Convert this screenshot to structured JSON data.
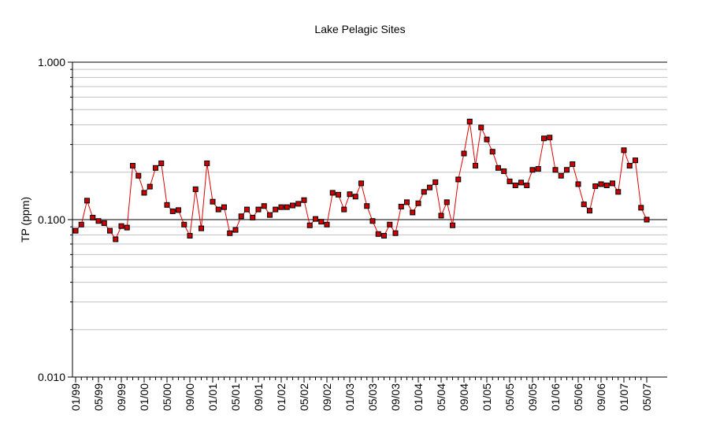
{
  "chart_data": {
    "type": "line",
    "title": "Lake Pelagic Sites",
    "xlabel": "",
    "ylabel": "TP (ppm)",
    "y_scale": "log",
    "ylim": [
      0.01,
      1.0
    ],
    "y_ticks": [
      0.01,
      0.1,
      1.0
    ],
    "y_tick_labels": [
      "0.010",
      "0.100",
      "1.000"
    ],
    "x_tick_labels": [
      "01/99",
      "05/99",
      "09/99",
      "01/00",
      "05/00",
      "09/00",
      "01/01",
      "05/01",
      "09/01",
      "01/02",
      "05/02",
      "09/02",
      "01/03",
      "05/03",
      "09/03",
      "01/04",
      "05/04",
      "09/04",
      "01/05",
      "05/05",
      "09/05",
      "01/06",
      "05/06",
      "09/06",
      "01/07",
      "05/07"
    ],
    "grid": "horizontal",
    "reference_line": 0.1,
    "colors": {
      "line": "#e00000",
      "marker_fill": "#cc0000",
      "marker_edge": "#000000",
      "grid": "#c0c0c0",
      "axis": "#000000"
    },
    "series": [
      {
        "values": [
          0.085,
          0.093,
          0.132,
          0.103,
          0.098,
          0.095,
          0.085,
          0.075,
          0.091,
          0.089,
          0.22,
          0.19,
          0.148,
          0.162,
          0.213,
          0.228,
          0.124,
          0.113,
          0.115,
          0.093,
          0.079,
          0.156,
          0.088,
          0.228,
          0.13,
          0.116,
          0.12,
          0.082,
          0.086,
          0.105,
          0.116,
          0.103,
          0.116,
          0.122,
          0.107,
          0.116,
          0.12,
          0.12,
          0.123,
          0.126,
          0.133,
          0.092,
          0.101,
          0.097,
          0.093,
          0.148,
          0.144,
          0.116,
          0.145,
          0.14,
          0.17,
          0.122,
          0.098,
          0.081,
          0.079,
          0.093,
          0.082,
          0.121,
          0.129,
          0.111,
          0.127,
          0.15,
          0.16,
          0.173,
          0.106,
          0.129,
          0.092,
          0.18,
          0.263,
          0.42,
          0.22,
          0.385,
          0.323,
          0.27,
          0.213,
          0.203,
          0.175,
          0.165,
          0.172,
          0.165,
          0.207,
          0.21,
          0.328,
          0.332,
          0.207,
          0.19,
          0.207,
          0.225,
          0.168,
          0.125,
          0.114,
          0.163,
          0.168,
          0.165,
          0.17,
          0.15,
          0.276,
          0.22,
          0.238,
          0.119,
          0.1
        ]
      }
    ]
  }
}
